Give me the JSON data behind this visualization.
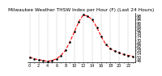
{
  "title": "Milwaukee Weather THSW Index per Hour (F) (Last 24 Hours)",
  "hours": [
    0,
    1,
    2,
    3,
    4,
    5,
    6,
    7,
    8,
    9,
    10,
    11,
    12,
    13,
    14,
    15,
    16,
    17,
    18,
    19,
    20,
    21,
    22,
    23
  ],
  "values": [
    50,
    48,
    47,
    46,
    45,
    46,
    48,
    52,
    58,
    68,
    80,
    92,
    100,
    98,
    94,
    85,
    74,
    65,
    60,
    57,
    55,
    53,
    52,
    51
  ],
  "line_color": "#ff0000",
  "marker_color": "#000000",
  "bg_color": "#ffffff",
  "grid_color": "#888888",
  "title_color": "#000000",
  "ylim": [
    44,
    102
  ],
  "xlim": [
    -0.5,
    23.5
  ],
  "yticks": [
    46,
    50,
    54,
    58,
    62,
    66,
    70,
    74,
    78,
    82,
    86,
    90,
    94,
    98
  ],
  "xtick_positions": [
    0,
    1,
    2,
    3,
    4,
    5,
    6,
    7,
    8,
    9,
    10,
    11,
    12,
    13,
    14,
    15,
    16,
    17,
    18,
    19,
    20,
    21,
    22,
    23
  ],
  "xtick_labels": [
    "0",
    "",
    "2",
    "",
    "4",
    "",
    "6",
    "",
    "8",
    "",
    "10",
    "",
    "12",
    "",
    "14",
    "",
    "16",
    "",
    "18",
    "",
    "20",
    "",
    "22",
    ""
  ],
  "ylabel_fontsize": 3.5,
  "xlabel_fontsize": 3.5,
  "title_fontsize": 4.2,
  "linewidth": 0.8,
  "markersize": 1.8
}
